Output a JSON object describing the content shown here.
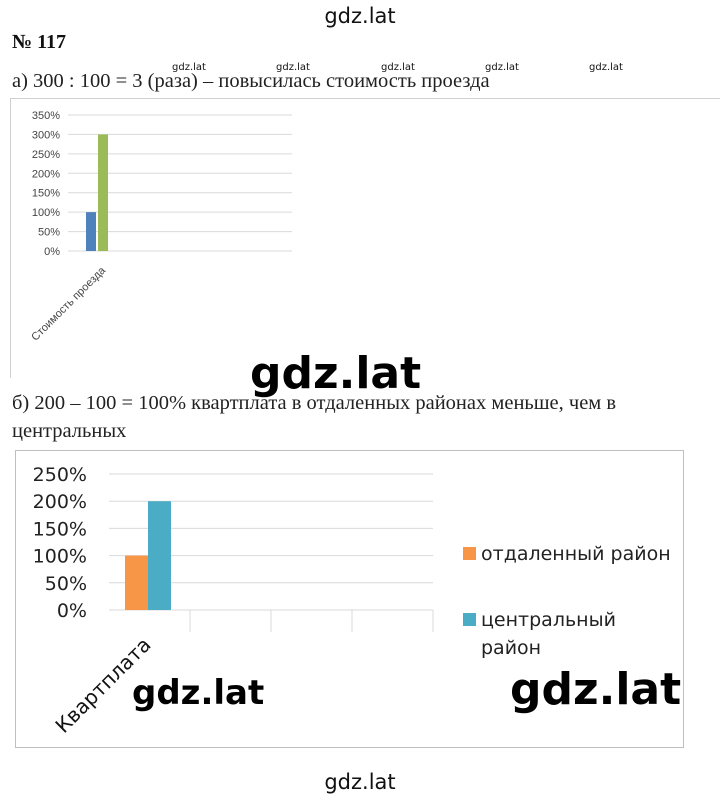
{
  "watermark": "gdz.lat",
  "heading": "№ 117",
  "part_a": {
    "text": "а) 300 : 100 = 3 (раза) – повысилась стоимость проезда"
  },
  "part_b": {
    "text_line1": "б) 200 – 100 = 100% квартплата в отдаленных районах меньше, чем в",
    "text_line2": "центральных"
  },
  "colors": {
    "chart1_series1": "#4f81bd",
    "chart1_series2": "#9bbb59",
    "chart2_series1": "#f79646",
    "chart2_series2": "#4bacc6",
    "grid": "#d9d9d9"
  },
  "chart_data": [
    {
      "type": "bar",
      "categories": [
        "Стоимость проезда"
      ],
      "series": [
        {
          "values": [
            100
          ]
        },
        {
          "values": [
            300
          ]
        }
      ],
      "ylim": [
        0,
        350
      ],
      "yticks": [
        "0%",
        "50%",
        "100%",
        "150%",
        "200%",
        "250%",
        "300%",
        "350%"
      ],
      "grid": true,
      "legend": "none"
    },
    {
      "type": "bar",
      "categories": [
        "Квартплата"
      ],
      "series": [
        {
          "name": "отдаленный район",
          "values": [
            100
          ]
        },
        {
          "name": "центральный район",
          "values": [
            200
          ]
        }
      ],
      "ylim": [
        0,
        250
      ],
      "yticks": [
        "0%",
        "50%",
        "100%",
        "150%",
        "200%",
        "250%"
      ],
      "grid": true,
      "legend": "right"
    }
  ]
}
